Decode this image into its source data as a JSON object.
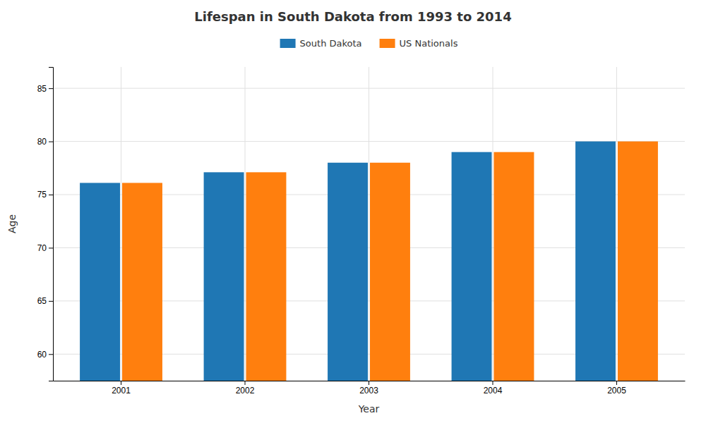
{
  "chart_data": {
    "type": "bar",
    "title": "Lifespan in South Dakota from 1993 to 2014",
    "x_label": "Year",
    "y_label": "Age",
    "categories": [
      "2001",
      "2002",
      "2003",
      "2004",
      "2005"
    ],
    "series": [
      {
        "name": "South Dakota",
        "values": [
          76.1,
          77.1,
          78.0,
          79.0,
          80.0
        ]
      },
      {
        "name": "US Nationals",
        "values": [
          76.1,
          77.1,
          78.0,
          79.0,
          80.0
        ]
      }
    ],
    "ylim": [
      57.5,
      87
    ],
    "yticks": [
      60,
      65,
      70,
      75,
      80,
      85
    ],
    "grid": true,
    "legend": "top"
  }
}
